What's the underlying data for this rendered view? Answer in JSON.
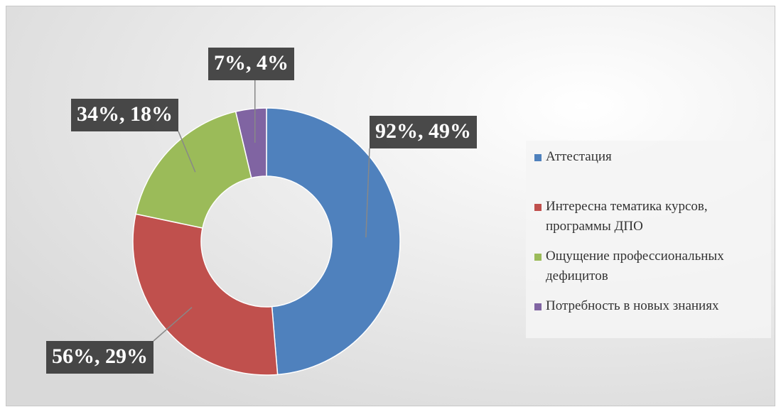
{
  "chart_data": {
    "type": "donut",
    "categories": [
      "Аттестация",
      "Интересна тематика курсов, программы ДПО",
      "Ощущение профессиональных дефицитов",
      "Потребность в новых знаниях"
    ],
    "values": [
      92,
      56,
      34,
      7
    ],
    "value_labels": [
      "92%, 49%",
      "56%, 29%",
      "34%, 18%",
      "7%, 4%"
    ],
    "colors": [
      "#4f81bd",
      "#c0504d",
      "#9bbb59",
      "#8064a2"
    ],
    "legend": "right"
  }
}
